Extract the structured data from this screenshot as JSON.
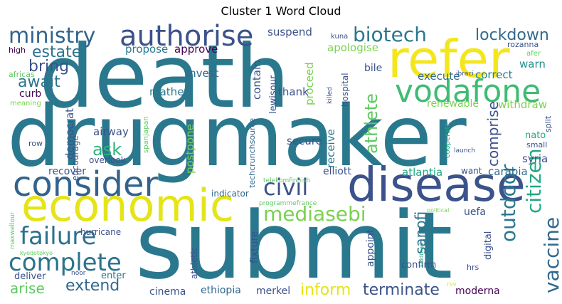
{
  "chart_data": {
    "type": "wordcloud",
    "title": "Cluster 1 Word Cloud",
    "colormap": "viridis",
    "background": "#ffffff",
    "words": [
      {
        "text": "death",
        "color": "#2a788e"
      },
      {
        "text": "drugmaker",
        "color": "#2a788e"
      },
      {
        "text": "submit",
        "color": "#2a788e"
      },
      {
        "text": "refer",
        "color": "#f4e61e"
      },
      {
        "text": "disease",
        "color": "#3b528b"
      },
      {
        "text": "economic",
        "color": "#e5e419"
      },
      {
        "text": "consider",
        "color": "#33638d"
      },
      {
        "text": "vodafone",
        "color": "#3fbc73"
      },
      {
        "text": "authorise",
        "color": "#3b528b"
      },
      {
        "text": "ministry",
        "color": "#33638d"
      },
      {
        "text": "biotech",
        "color": "#2a788e"
      },
      {
        "text": "failure",
        "color": "#2c728e"
      },
      {
        "text": "complete",
        "color": "#2c728e"
      },
      {
        "text": "civil",
        "color": "#3b528b"
      },
      {
        "text": "mediasebi",
        "color": "#7ad151"
      },
      {
        "text": "lockdown",
        "color": "#31688e"
      },
      {
        "text": "estate",
        "color": "#2c728e"
      },
      {
        "text": "bring",
        "color": "#3b528b"
      },
      {
        "text": "await",
        "color": "#2c728e"
      },
      {
        "text": "athlete",
        "color": "#5ec962"
      },
      {
        "text": "ask",
        "color": "#2fb47c"
      },
      {
        "text": "outdoor",
        "color": "#2a788e"
      },
      {
        "text": "citizen",
        "color": "#22a884"
      },
      {
        "text": "vaccine",
        "color": "#31688e"
      },
      {
        "text": "comprise",
        "color": "#3b528b"
      },
      {
        "text": "arise",
        "color": "#5ec962"
      },
      {
        "text": "extend",
        "color": "#31688e"
      },
      {
        "text": "inform",
        "color": "#e5e419"
      },
      {
        "text": "terminate",
        "color": "#3b528b"
      },
      {
        "text": "sanofi",
        "color": "#2c728e"
      },
      {
        "text": "suspend",
        "color": "#3b528b"
      },
      {
        "text": "propose",
        "color": "#2a788e"
      },
      {
        "text": "approve",
        "color": "#440154"
      },
      {
        "text": "apologise",
        "color": "#7ad151"
      },
      {
        "text": "invest",
        "color": "#31688e"
      },
      {
        "text": "contain",
        "color": "#3b528b"
      },
      {
        "text": "proceed",
        "color": "#7ad151"
      },
      {
        "text": "mathew",
        "color": "#2a788e"
      },
      {
        "text": "thank",
        "color": "#3b528b"
      },
      {
        "text": "lewisour",
        "color": "#3b528b"
      },
      {
        "text": "execute",
        "color": "#31688e"
      },
      {
        "text": "correct",
        "color": "#2a788e"
      },
      {
        "text": "warn",
        "color": "#21918c"
      },
      {
        "text": "bile",
        "color": "#3b528b"
      },
      {
        "text": "secure",
        "color": "#3b528b"
      },
      {
        "text": "receive",
        "color": "#2a788e"
      },
      {
        "text": "hospital",
        "color": "#3b528b"
      },
      {
        "text": "renewable",
        "color": "#7ad151"
      },
      {
        "text": "withdraw",
        "color": "#7ad151"
      },
      {
        "text": "curb",
        "color": "#440154"
      },
      {
        "text": "democrat",
        "color": "#3b528b"
      },
      {
        "text": "airway",
        "color": "#3b528b"
      },
      {
        "text": "postpone",
        "color": "#7ad151"
      },
      {
        "text": "recover",
        "color": "#3b528b"
      },
      {
        "text": "elliott",
        "color": "#3b528b"
      },
      {
        "text": "atlantia",
        "color": "#22a884"
      },
      {
        "text": "want",
        "color": "#3b528b"
      },
      {
        "text": "carabia",
        "color": "#31688e"
      },
      {
        "text": "syria",
        "color": "#3b528b"
      },
      {
        "text": "nato",
        "color": "#22a884"
      },
      {
        "text": "small",
        "color": "#3b528b"
      },
      {
        "text": "split",
        "color": "#3b528b"
      },
      {
        "text": "techcrunchsource",
        "color": "#31688e"
      },
      {
        "text": "telekomfinnish",
        "color": "#5ec962"
      },
      {
        "text": "indicator",
        "color": "#31688e"
      },
      {
        "text": "programmefrance",
        "color": "#5ec962"
      },
      {
        "text": "encourage",
        "color": "#3b528b"
      },
      {
        "text": "overlook",
        "color": "#3b528b"
      },
      {
        "text": "spanjapan",
        "color": "#5ec962"
      },
      {
        "text": "high",
        "color": "#440154"
      },
      {
        "text": "africas",
        "color": "#5ec962"
      },
      {
        "text": "meaning",
        "color": "#7ad151"
      },
      {
        "text": "row",
        "color": "#3b528b"
      },
      {
        "text": "kuna",
        "color": "#3b528b"
      },
      {
        "text": "rozanna",
        "color": "#3b528b"
      },
      {
        "text": "afer",
        "color": "#5ec962"
      },
      {
        "text": "ibraci",
        "color": "#3b528b"
      },
      {
        "text": "killed",
        "color": "#3b528b"
      },
      {
        "text": "cooperate",
        "color": "#22a884"
      },
      {
        "text": "launch",
        "color": "#3b528b"
      },
      {
        "text": "political",
        "color": "#7ad151"
      },
      {
        "text": "uefa",
        "color": "#3b528b"
      },
      {
        "text": "digital",
        "color": "#3b528b"
      },
      {
        "text": "hrs",
        "color": "#3b528b"
      },
      {
        "text": "appoint",
        "color": "#3b528b"
      },
      {
        "text": "confirm",
        "color": "#3b528b"
      },
      {
        "text": "saidread",
        "color": "#22a884"
      },
      {
        "text": "rsv",
        "color": "#e5e419"
      },
      {
        "text": "moderna",
        "color": "#440154"
      },
      {
        "text": "merkel",
        "color": "#3b528b"
      },
      {
        "text": "fixture",
        "color": "#3b528b"
      },
      {
        "text": "athletic",
        "color": "#3b528b"
      },
      {
        "text": "ethiopia",
        "color": "#31688e"
      },
      {
        "text": "cinema",
        "color": "#3b528b"
      },
      {
        "text": "hurricane",
        "color": "#3b528b"
      },
      {
        "text": "enter",
        "color": "#2a788e"
      },
      {
        "text": "deliver",
        "color": "#3b528b"
      },
      {
        "text": "noor",
        "color": "#3b528b"
      },
      {
        "text": "maxwellour",
        "color": "#5ec962"
      },
      {
        "text": "kyodotokyo",
        "color": "#5ec962"
      }
    ]
  }
}
